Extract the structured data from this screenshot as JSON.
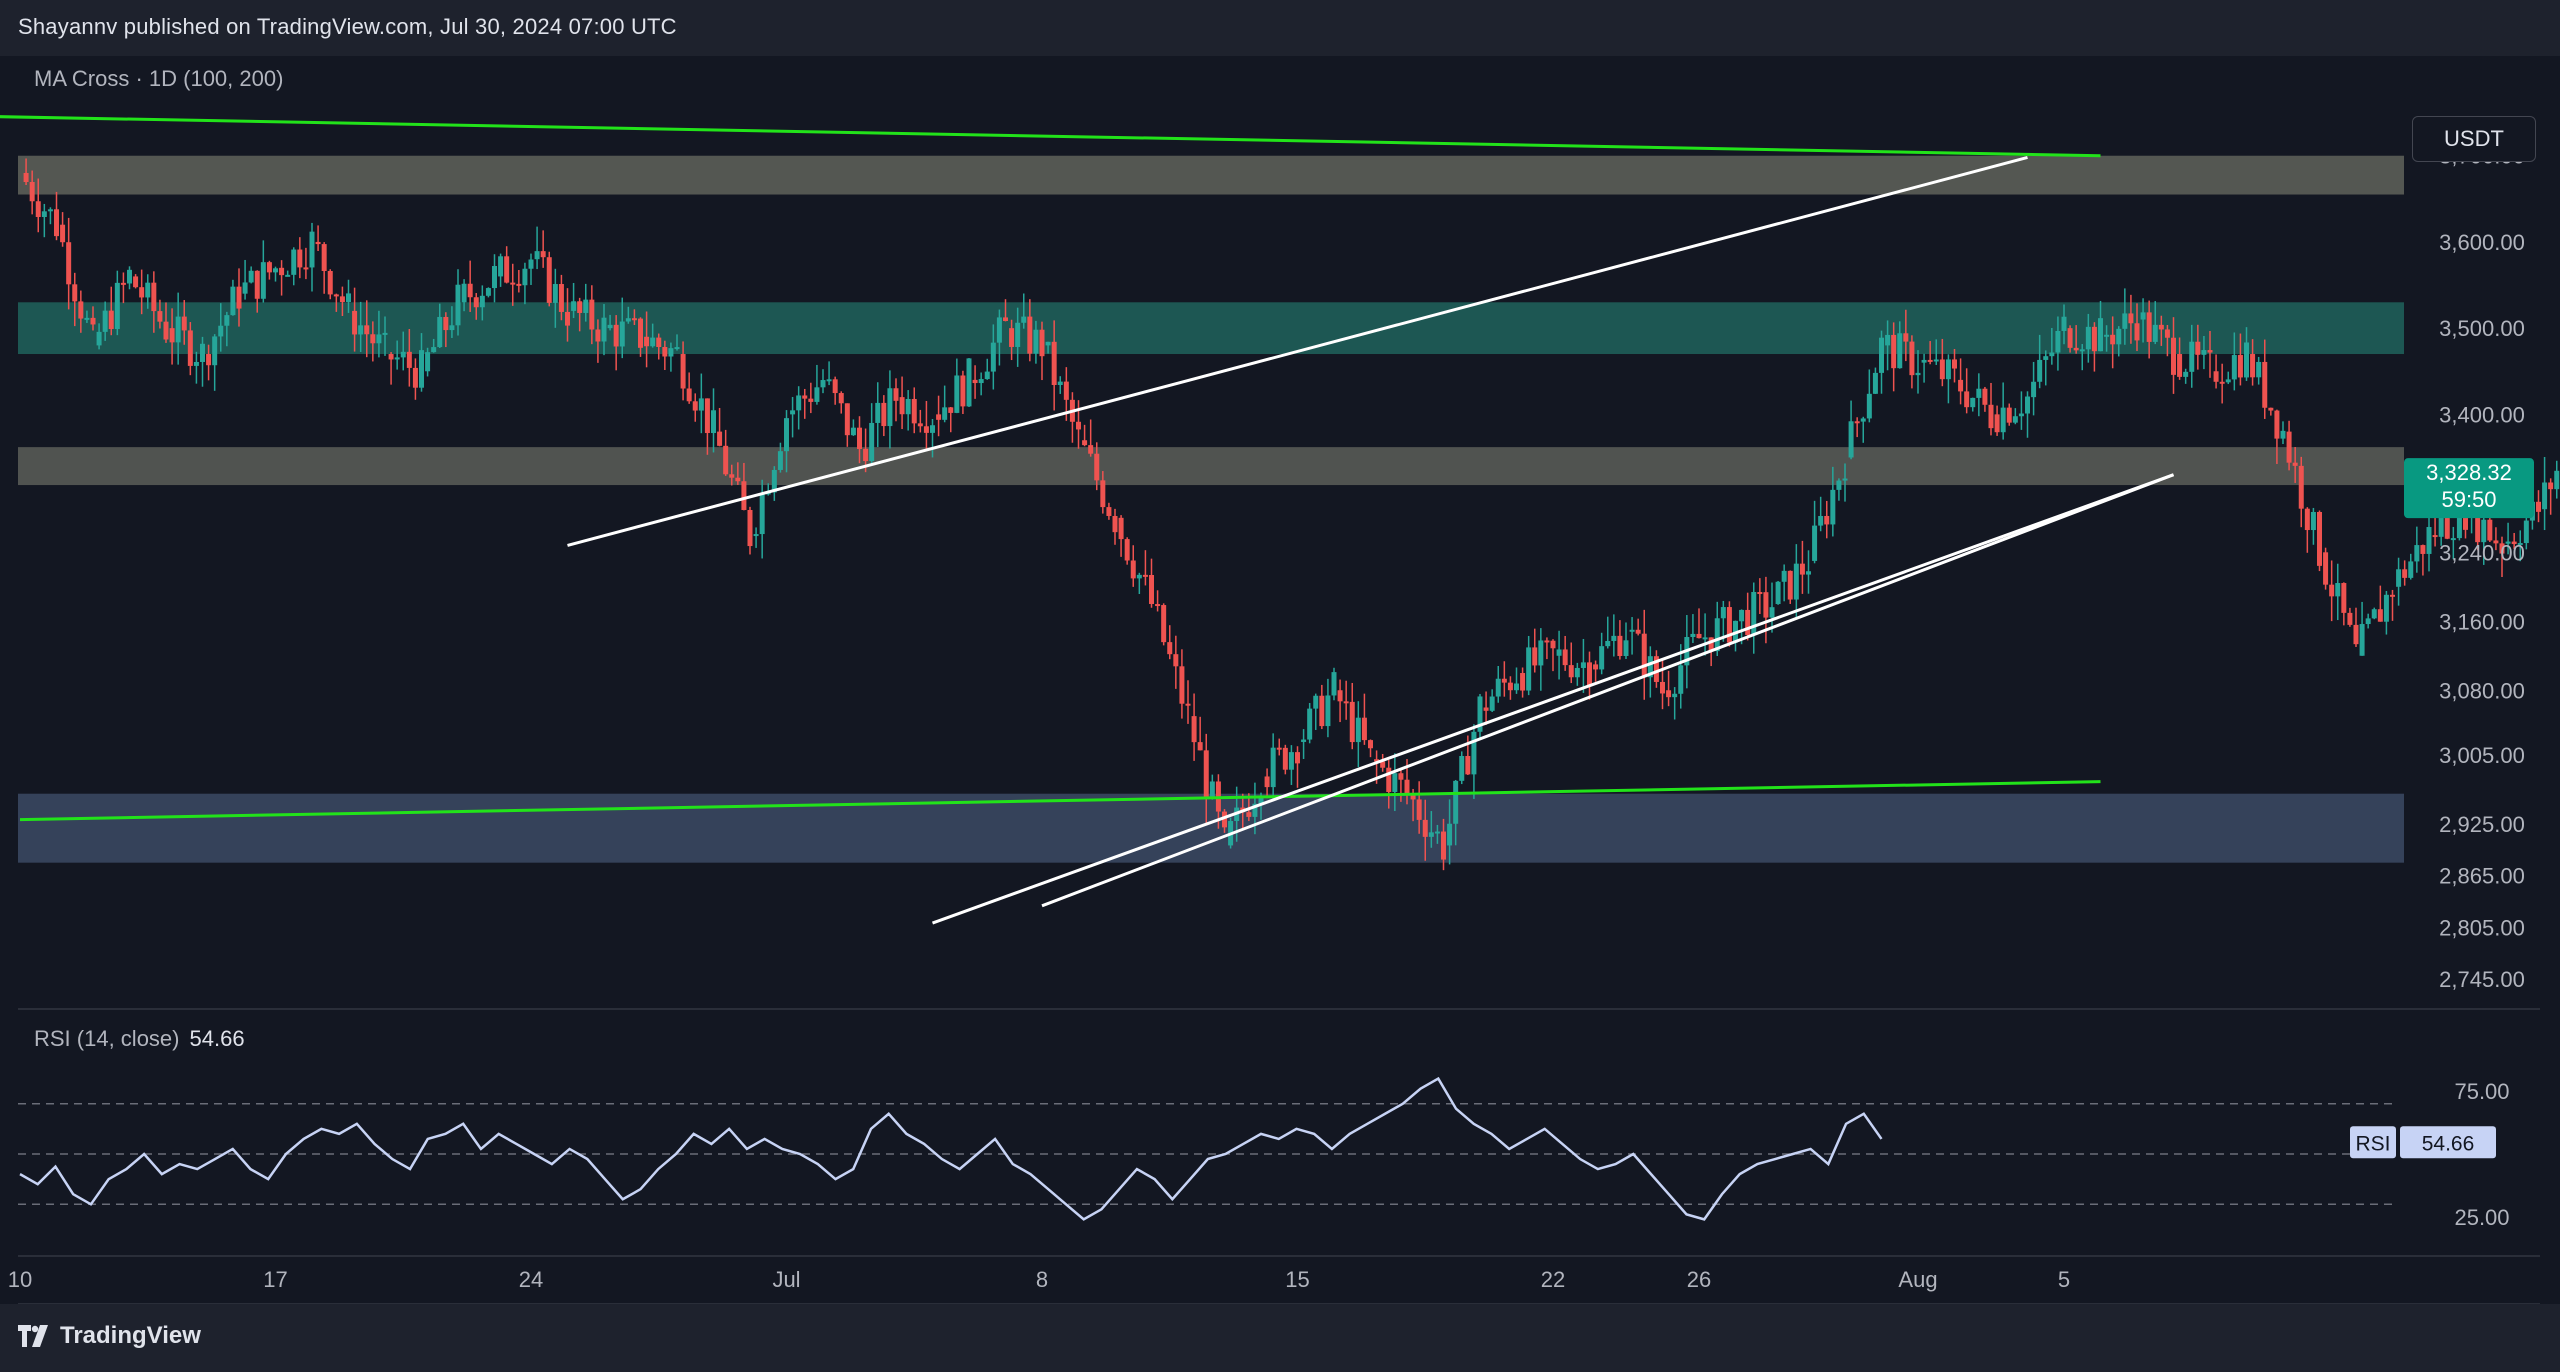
{
  "header": {
    "publisher_line": "Shayannv published on TradingView.com, Jul 30, 2024 07:00 UTC",
    "currency_button": "USDT"
  },
  "footer": {
    "brand": "TradingView"
  },
  "colors": {
    "background": "#131722",
    "bar_background": "#1e222d",
    "candle_up": "#26a69a",
    "candle_down": "#ef5350",
    "ma_line": "#22e31a",
    "trend_line": "#ffffff",
    "zone_resistance_top": "#5c5e58",
    "zone_resistance_mid": "#1e5b56",
    "zone_support": "#3a4761",
    "rsi_line": "#c7d3f5",
    "price_badge": "#089981"
  },
  "chart_data": [
    {
      "type": "candlestick",
      "title": "MA Cross · 1D (100, 200)",
      "y_ticks": [
        "3,700.00",
        "3,600.00",
        "3,500.00",
        "3,400.00",
        "3,240.00",
        "3,160.00",
        "3,080.00",
        "3,005.00",
        "2,925.00",
        "2,865.00",
        "2,805.00",
        "2,745.00"
      ],
      "x_ticks": [
        "10",
        "17",
        "24",
        "Jul",
        "8",
        "15",
        "22",
        "26",
        "Aug",
        "5"
      ],
      "ylim": [
        2730,
        3760
      ],
      "current_price": "3,328.32",
      "countdown": "59:50",
      "zones": [
        {
          "name": "resistance-upper",
          "from": 3655,
          "to": 3700
        },
        {
          "name": "resistance-mid",
          "from": 3470,
          "to": 3530
        },
        {
          "name": "resistance-lower",
          "from": 3318,
          "to": 3362
        },
        {
          "name": "support",
          "from": 2880,
          "to": 2960
        }
      ],
      "ma_lines": [
        {
          "name": "MA 100",
          "points": [
            [
              "Jun 6",
              3748
            ],
            [
              "Aug 6",
              3700
            ]
          ]
        },
        {
          "name": "MA 200",
          "points": [
            [
              "Jun 10",
              2930
            ],
            [
              "Aug 6",
              2974
            ]
          ]
        }
      ],
      "trend_lines": [
        {
          "name": "upper-channel",
          "points": [
            [
              "Jun 25",
              3248
            ],
            [
              "Aug 4",
              3698
            ]
          ]
        },
        {
          "name": "lower-channel-1",
          "points": [
            [
              "Jul 5",
              2810
            ],
            [
              "Aug 8",
              3330
            ]
          ]
        },
        {
          "name": "lower-channel-2",
          "points": [
            [
              "Jul 8",
              2830
            ],
            [
              "Aug 8",
              3330
            ]
          ]
        }
      ],
      "close_series": [
        [
          "Jun 10",
          3680
        ],
        [
          "Jun 11",
          3620
        ],
        [
          "Jun 12",
          3480
        ],
        [
          "Jun 13",
          3560
        ],
        [
          "Jun 14",
          3500
        ],
        [
          "Jun 15",
          3470
        ],
        [
          "Jun 16",
          3540
        ],
        [
          "Jun 17",
          3570
        ],
        [
          "Jun 18",
          3600
        ],
        [
          "Jun 19",
          3520
        ],
        [
          "Jun 20",
          3470
        ],
        [
          "Jun 21",
          3450
        ],
        [
          "Jun 22",
          3530
        ],
        [
          "Jun 23",
          3560
        ],
        [
          "Jun 24",
          3580
        ],
        [
          "Jun 25",
          3520
        ],
        [
          "Jun 26",
          3500
        ],
        [
          "Jun 27",
          3490
        ],
        [
          "Jun 28",
          3470
        ],
        [
          "Jun 29",
          3380
        ],
        [
          "Jun 30",
          3260
        ],
        [
          "Jul 1",
          3400
        ],
        [
          "Jul 2",
          3440
        ],
        [
          "Jul 3",
          3360
        ],
        [
          "Jul 4",
          3420
        ],
        [
          "Jul 5",
          3400
        ],
        [
          "Jul 6",
          3440
        ],
        [
          "Jul 7",
          3500
        ],
        [
          "Jul 8",
          3480
        ],
        [
          "Jul 9",
          3370
        ],
        [
          "Jul 10",
          3280
        ],
        [
          "Jul 11",
          3180
        ],
        [
          "Jul 12",
          3050
        ],
        [
          "Jul 13",
          2900
        ],
        [
          "Jul 14",
          2980
        ],
        [
          "Jul 15",
          3020
        ],
        [
          "Jul 16",
          3080
        ],
        [
          "Jul 17",
          3000
        ],
        [
          "Jul 18",
          2960
        ],
        [
          "Jul 19",
          2900
        ],
        [
          "Jul 20",
          3060
        ],
        [
          "Jul 21",
          3100
        ],
        [
          "Jul 22",
          3120
        ],
        [
          "Jul 23",
          3110
        ],
        [
          "Jul 24",
          3150
        ],
        [
          "Jul 25",
          3080
        ],
        [
          "Jul 26",
          3140
        ],
        [
          "Jul 27",
          3160
        ],
        [
          "Jul 28",
          3180
        ],
        [
          "Jul 29",
          3230
        ],
        [
          "Jul 30",
          3350
        ],
        [
          "Jul 31",
          3480
        ],
        [
          "Aug 1",
          3460
        ],
        [
          "Aug 2",
          3440
        ],
        [
          "Aug 3",
          3400
        ],
        [
          "Aug 4",
          3420
        ],
        [
          "Aug 5",
          3500
        ],
        [
          "Aug 6",
          3490
        ],
        [
          "Aug 7",
          3510
        ],
        [
          "Aug 8",
          3470
        ],
        [
          "Aug 9",
          3450
        ],
        [
          "Aug 10",
          3470
        ],
        [
          "Aug 11",
          3380
        ],
        [
          "Aug 12",
          3240
        ],
        [
          "Aug 13",
          3120
        ],
        [
          "Aug 14",
          3200
        ],
        [
          "Aug 15",
          3260
        ],
        [
          "Aug 16",
          3290
        ],
        [
          "Aug 17",
          3250
        ],
        [
          "Aug 18",
          3290
        ],
        [
          "Aug 19",
          3380
        ],
        [
          "Aug 20",
          3328
        ]
      ]
    },
    {
      "type": "line",
      "title": "RSI (14, close)",
      "current_value": "54.66",
      "badge_label": "RSI",
      "y_ticks": [
        "75.00",
        "25.00"
      ],
      "bands": [
        70,
        50,
        30
      ],
      "ylim": [
        15,
        85
      ],
      "values": [
        42,
        38,
        45,
        34,
        30,
        40,
        44,
        50,
        42,
        46,
        44,
        48,
        52,
        44,
        40,
        50,
        56,
        60,
        58,
        62,
        54,
        48,
        44,
        56,
        58,
        62,
        52,
        58,
        54,
        50,
        46,
        52,
        48,
        40,
        32,
        36,
        44,
        50,
        58,
        54,
        60,
        52,
        56,
        52,
        50,
        46,
        40,
        44,
        60,
        66,
        58,
        54,
        48,
        44,
        50,
        56,
        46,
        42,
        36,
        30,
        24,
        28,
        36,
        44,
        40,
        32,
        40,
        48,
        50,
        54,
        58,
        56,
        60,
        58,
        52,
        58,
        62,
        66,
        70,
        76,
        80,
        68,
        62,
        58,
        52,
        56,
        60,
        54,
        48,
        44,
        46,
        50,
        42,
        34,
        26,
        24,
        34,
        42,
        46,
        48,
        50,
        52,
        46,
        62,
        66,
        56
      ]
    }
  ]
}
